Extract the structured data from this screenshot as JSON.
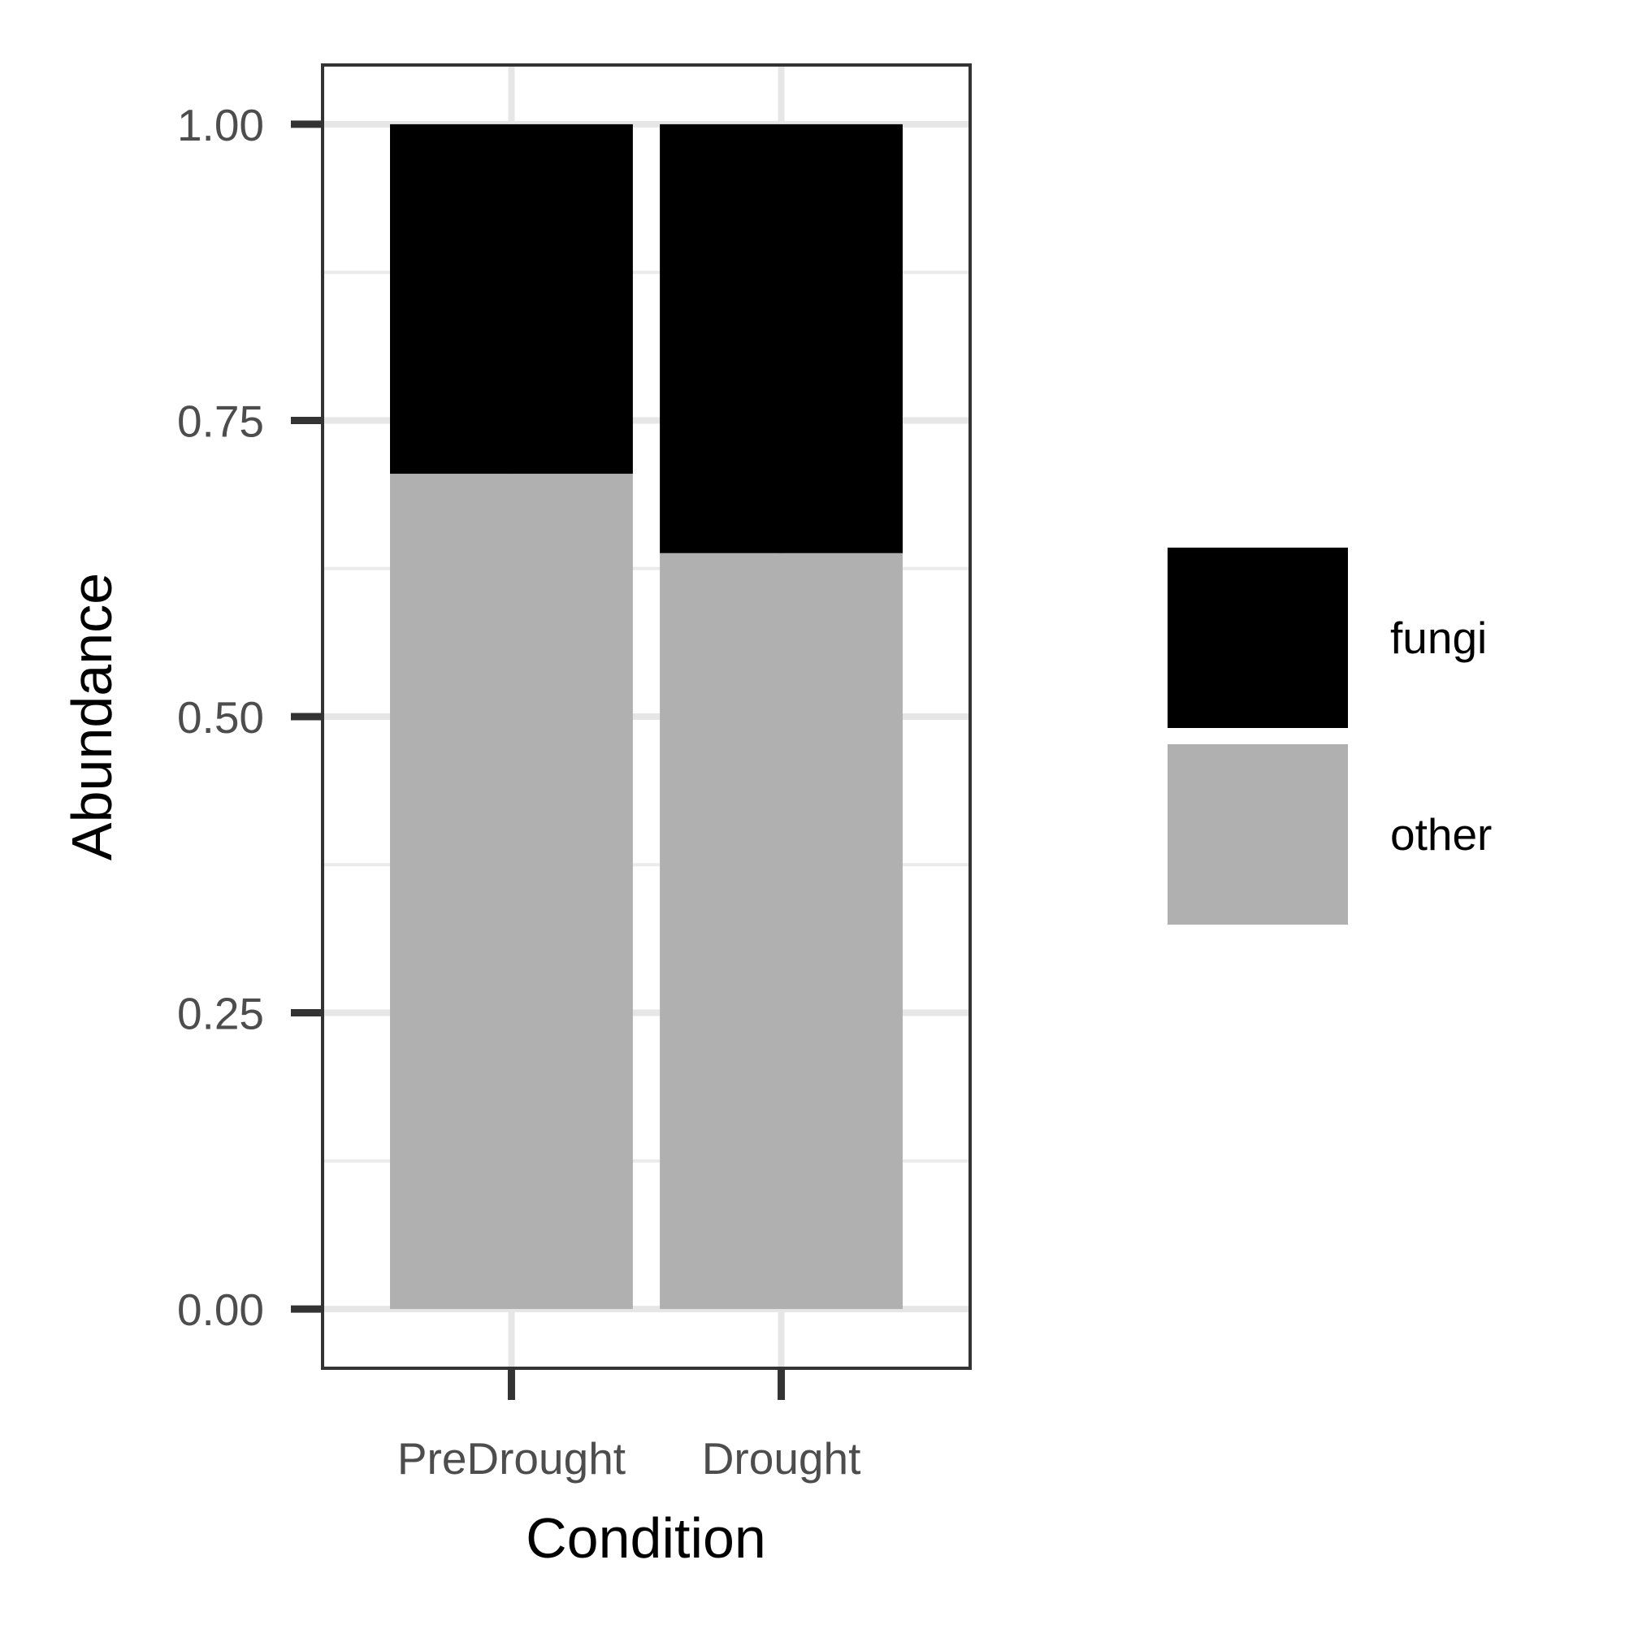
{
  "chart_data": {
    "type": "bar",
    "stacked": true,
    "categories": [
      "PreDrought",
      "Drought"
    ],
    "series": [
      {
        "name": "other",
        "values": [
          0.705,
          0.638
        ],
        "color": "#b0b0b0"
      },
      {
        "name": "fungi",
        "values": [
          0.295,
          0.362
        ],
        "color": "#000000"
      }
    ],
    "legend_order": [
      "fungi",
      "other"
    ],
    "xlabel": "Condition",
    "ylabel": "Abundance",
    "ylim": [
      -0.05,
      1.05
    ],
    "yticks": [
      0.0,
      0.25,
      0.5,
      0.75,
      1.0
    ],
    "ytick_labels": [
      "0.00",
      "0.25",
      "0.50",
      "0.75",
      "1.00"
    ],
    "grid": true,
    "legend_position": "right"
  }
}
